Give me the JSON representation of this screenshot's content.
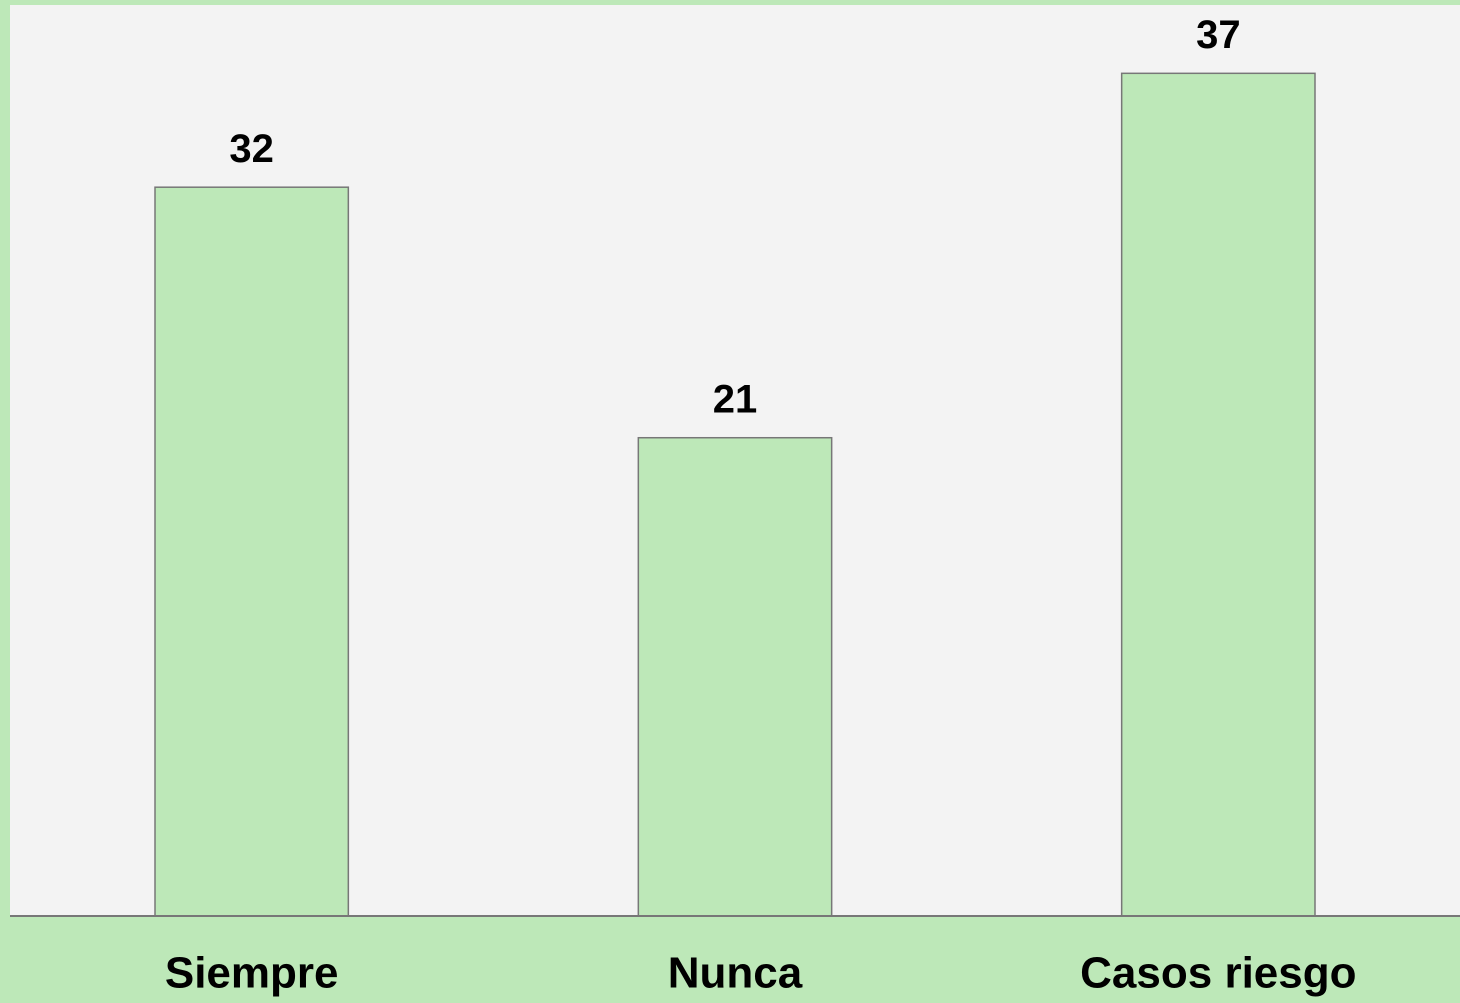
{
  "chart_data": {
    "type": "bar",
    "categories": [
      "Siempre",
      "Nunca",
      "Casos riesgo"
    ],
    "values": [
      32,
      21,
      37
    ],
    "color": "#bde8b8",
    "ylim": [
      0,
      40
    ]
  }
}
